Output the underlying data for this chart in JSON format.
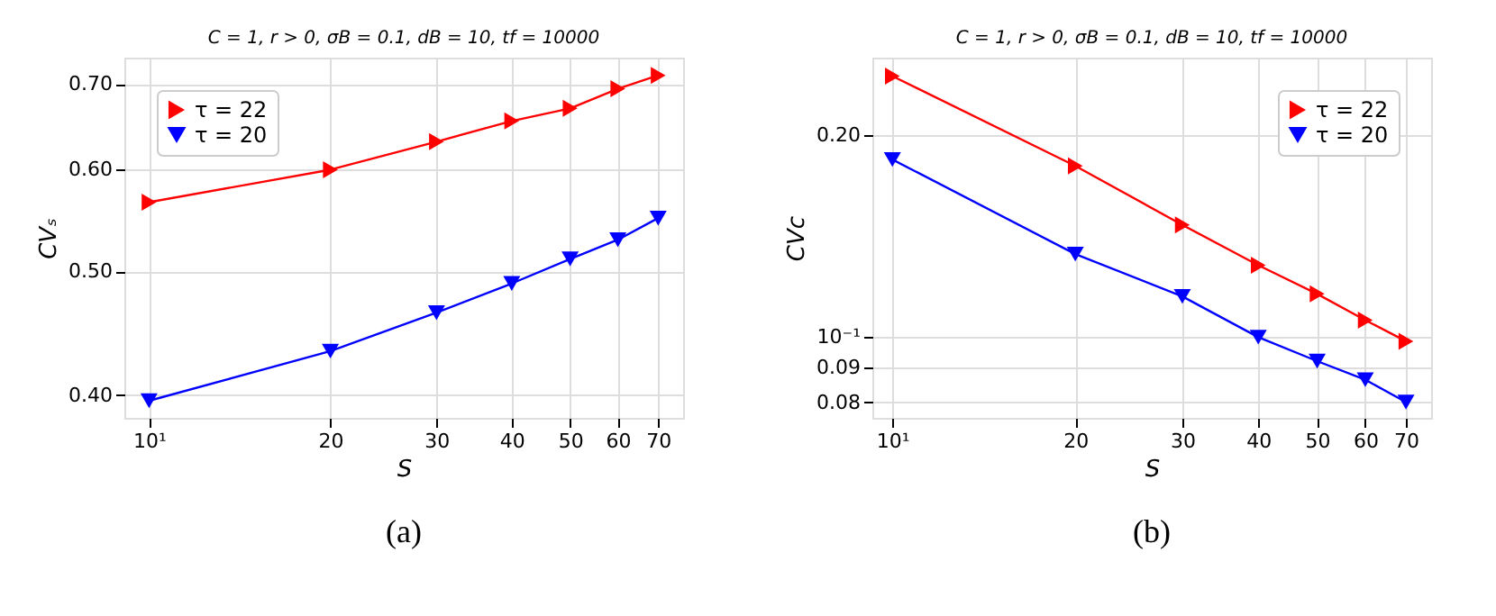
{
  "chart_data": [
    {
      "type": "line",
      "title": "C = 1,  r > 0,  σB = 0.1,  dB = 10,  tf = 10000",
      "xlabel": "S",
      "ylabel": "CVₛ",
      "log": "xy",
      "grid": true,
      "legend": "top left",
      "x": [
        10,
        20,
        30,
        40,
        50,
        60,
        70
      ],
      "xlim": [
        9.1,
        77
      ],
      "xticks": [
        {
          "value": 10,
          "label": "10¹"
        },
        20,
        30,
        40,
        50,
        60,
        70
      ],
      "ylim": [
        0.384,
        0.734
      ],
      "yticks": [
        {
          "value": 0.4,
          "label": "0.40"
        },
        {
          "value": 0.5,
          "label": "0.50"
        },
        {
          "value": 0.6,
          "label": "0.60"
        },
        {
          "value": 0.7,
          "label": "0.70"
        }
      ],
      "series": [
        {
          "name": "τ = 22",
          "color": "#ff0000",
          "marker": "triangle-right",
          "values": [
            0.566,
            0.6,
            0.631,
            0.655,
            0.67,
            0.694,
            0.711
          ]
        },
        {
          "name": "τ = 20",
          "color": "#0000ff",
          "marker": "triangle-down",
          "values": [
            0.396,
            0.433,
            0.464,
            0.489,
            0.511,
            0.529,
            0.55
          ]
        }
      ],
      "annotations": [
        "(a)"
      ]
    },
    {
      "type": "line",
      "title": "C = 1,  r > 0,  σB = 0.1,  dB = 10,  tf = 10000",
      "xlabel": "S",
      "ylabel": "CVc",
      "log": "xy",
      "grid": true,
      "legend": "top right",
      "x": [
        10,
        20,
        30,
        40,
        50,
        60,
        70
      ],
      "xlim": [
        9.27,
        77
      ],
      "xticks": [
        {
          "value": 10,
          "label": "10¹"
        },
        20,
        30,
        40,
        50,
        60,
        70
      ],
      "ylim": [
        0.0758,
        0.261
      ],
      "yticks": [
        {
          "value": 0.08,
          "label": "0.08"
        },
        {
          "value": 0.09,
          "label": "0.09"
        },
        {
          "value": 0.1,
          "label": "10⁻¹"
        },
        {
          "value": 0.2,
          "label": "0.20"
        }
      ],
      "series": [
        {
          "name": "τ = 22",
          "color": "#ff0000",
          "marker": "triangle-right",
          "values": [
            0.245,
            0.18,
            0.147,
            0.128,
            0.116,
            0.106,
            0.0986
          ]
        },
        {
          "name": "τ = 20",
          "color": "#0000ff",
          "marker": "triangle-down",
          "values": [
            0.184,
            0.133,
            0.115,
            0.1,
            0.0921,
            0.0864,
            0.08
          ]
        }
      ],
      "annotations": [
        "(b)"
      ]
    }
  ]
}
